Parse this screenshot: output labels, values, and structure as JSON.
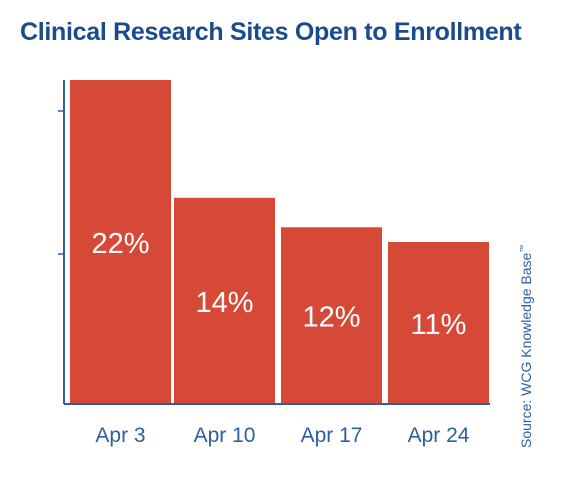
{
  "chart_data": {
    "type": "bar",
    "title": "Clinical Research Sites Open to Enrollment",
    "categories": [
      "Apr 3",
      "Apr 10",
      "Apr 17",
      "Apr 24"
    ],
    "values": [
      22,
      14,
      12,
      11
    ],
    "value_labels": [
      "22%",
      "14%",
      "12%",
      "11%"
    ],
    "ylim": [
      0,
      22
    ],
    "grid": false,
    "legend": "none",
    "source_text": "Source: WCG Knowledge Base",
    "source_mark": "™"
  },
  "colors": {
    "bar": "#d74937",
    "title": "#1a4b8c",
    "axis": "#2c5fa0",
    "tick_label": "#2c5fa0",
    "value_label": "#ffffff",
    "source": "#2c5fa0"
  }
}
